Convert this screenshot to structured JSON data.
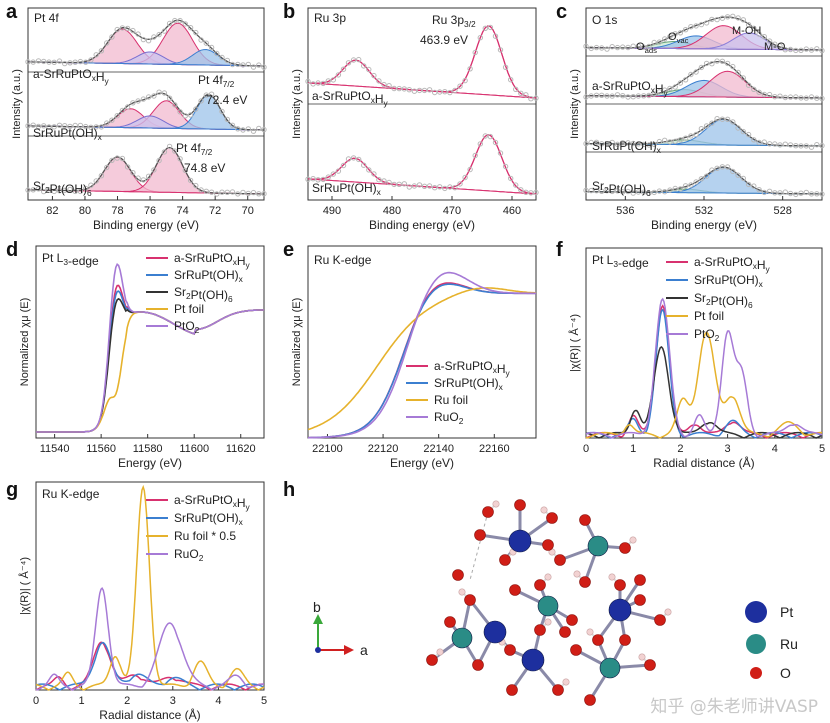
{
  "colors": {
    "pink_fill": "#f2b9cf",
    "pink_line": "#d8316f",
    "blue_fill": "#9cc3ea",
    "blue_line": "#3b7fd0",
    "violet_fill": "#c9c3ef",
    "green_fill": "#c9ead2",
    "dots": "#b8b8b8",
    "gray_line": "#555555",
    "orange": "#e6b22c",
    "purple": "#a67ad6",
    "black": "#333333",
    "ru_atom": "#2a8c86",
    "pt_atom": "#1d2f9e",
    "o_atom": "#d01e16",
    "h_atom": "#f2d2d2"
  },
  "watermark": "知乎 @朱老师讲VASP",
  "panel_labels": [
    "a",
    "b",
    "c",
    "d",
    "e",
    "f",
    "g",
    "h"
  ],
  "chart_data": [
    {
      "id": "a",
      "type": "line",
      "title": "Pt 4f",
      "xlabel": "Binding energy (eV)",
      "ylabel": "Intensity (a.u.)",
      "xlim": [
        83.5,
        69
      ],
      "xticks": [
        82,
        80,
        78,
        76,
        74,
        72,
        70
      ],
      "xticklabels": [
        "82",
        "80",
        "78",
        "76",
        "74",
        "72",
        "70"
      ],
      "spectra": [
        {
          "label": "a-SrRuPtO",
          "sub1": "x",
          "mid": "H",
          "sub2": "y",
          "peaks": [
            [
              77.7,
              0.9,
              1.0
            ],
            [
              74.3,
              0.9,
              1.2
            ],
            [
              76.0,
              0.8,
              0.35
            ],
            [
              72.6,
              0.8,
              0.45
            ]
          ]
        },
        {
          "label": "SrRuPt(OH)",
          "sub1": "x",
          "peaks": [
            [
              77.2,
              0.8,
              0.55
            ],
            [
              75.0,
              0.8,
              0.8
            ],
            [
              76.0,
              0.8,
              0.35
            ],
            [
              72.4,
              0.7,
              1.0
            ]
          ]
        },
        {
          "label": "Sr",
          "sub1": "2",
          "mid": "Pt(OH)",
          "sub2": "6",
          "peaks": [
            [
              78.0,
              0.8,
              1.0
            ],
            [
              74.8,
              0.8,
              1.3
            ]
          ]
        }
      ],
      "annotations": [
        {
          "main": "Pt 4f",
          "sub": "7/2",
          "value": "72.4 eV"
        },
        {
          "main": "Pt 4f",
          "sub": "7/2",
          "value": "74.8 eV"
        }
      ]
    },
    {
      "id": "b",
      "type": "line",
      "title": "Ru 3p",
      "xlabel": "Binding energy (eV)",
      "ylabel": "Intensity (a.u.)",
      "xlim": [
        494,
        456
      ],
      "xticks": [
        490,
        480,
        470,
        460
      ],
      "xticklabels": [
        "490",
        "480",
        "470",
        "460"
      ],
      "spectra": [
        {
          "label": "a-SrRuPtO",
          "sub1": "x",
          "mid": "H",
          "sub2": "y",
          "peaks": [
            [
              486.0,
              2.2,
              0.6
            ],
            [
              463.9,
              2.2,
              1.6
            ]
          ]
        },
        {
          "label": "SrRuPt(OH)",
          "sub1": "x",
          "peaks": [
            [
              486.2,
              2.2,
              0.55
            ],
            [
              463.9,
              2.2,
              1.3
            ]
          ]
        }
      ],
      "annotations": [
        {
          "main": "Ru 3p",
          "sub": "3/2",
          "value": "463.9 eV"
        }
      ]
    },
    {
      "id": "c",
      "type": "line",
      "title": "O 1s",
      "xlabel": "Binding energy (eV)",
      "ylabel": "Intensity (a.u.)",
      "xlim": [
        538,
        526
      ],
      "xticks": [
        536,
        532,
        528
      ],
      "xticklabels": [
        "536",
        "532",
        "528"
      ],
      "spectra": [
        {
          "label": "",
          "peaks": [
            [
              533.5,
              0.9,
              0.3
            ],
            [
              532.4,
              0.9,
              0.55
            ],
            [
              531.0,
              0.9,
              1.0
            ],
            [
              529.7,
              0.8,
              0.7
            ]
          ]
        },
        {
          "label": "a-SrRuPtO",
          "sub1": "x",
          "mid": "H",
          "sub2": "y",
          "peaks": [
            [
              533.0,
              0.9,
              0.3
            ],
            [
              532.0,
              0.9,
              0.7
            ],
            [
              530.8,
              0.9,
              1.1
            ]
          ]
        },
        {
          "label": "SrRuPt(OH)",
          "sub1": "x",
          "peaks": [
            [
              533.0,
              0.9,
              0.2
            ],
            [
              531.0,
              0.9,
              1.1
            ]
          ]
        },
        {
          "label": "Sr",
          "sub1": "2",
          "mid": "Pt(OH)",
          "sub2": "6",
          "peaks": [
            [
              532.9,
              0.8,
              0.15
            ],
            [
              531.0,
              0.9,
              1.1
            ]
          ]
        }
      ],
      "annotations": [
        {
          "main": "O",
          "sub": "ads"
        },
        {
          "main": "O",
          "sub": "vac"
        },
        {
          "main": "M-OH"
        },
        {
          "main": "M-O"
        }
      ]
    },
    {
      "id": "d",
      "type": "line",
      "title": "Pt L",
      "title_sub": "3",
      "title_tail": "-edge",
      "xlabel": "Energy (eV)",
      "ylabel": "Normalized χμ (E)",
      "xlim": [
        11532,
        11630
      ],
      "ylim": [
        0,
        1.6
      ],
      "xticks": [
        11540,
        11560,
        11580,
        11600,
        11620
      ],
      "xticklabels": [
        "11540",
        "11560",
        "11580",
        "11600",
        "11620"
      ],
      "series": [
        {
          "name": "a-SrRuPtO",
          "sub1": "x",
          "mid": "H",
          "sub2": "y",
          "color": "#d8316f",
          "e0": 11563,
          "wl": 1.3
        },
        {
          "name": "SrRuPt(OH)",
          "sub1": "x",
          "color": "#3b7fd0",
          "e0": 11563,
          "wl": 1.25
        },
        {
          "name": "Sr",
          "sub1": "2",
          "mid": "Pt(OH)",
          "sub2": "6",
          "color": "#333333",
          "e0": 11563,
          "wl": 1.18
        },
        {
          "name": "Pt foil",
          "color": "#e6b22c",
          "e0": 11563,
          "wl": 0.42
        },
        {
          "name": "PtO",
          "sub1": "2",
          "color": "#a67ad6",
          "e0": 11563,
          "wl": 1.48
        }
      ]
    },
    {
      "id": "e",
      "type": "line",
      "title": "Ru K-edge",
      "xlabel": "Energy (eV)",
      "ylabel": "Normalized χμ (E)",
      "xlim": [
        22093,
        22175
      ],
      "ylim": [
        0,
        1.3
      ],
      "xticks": [
        22100,
        22120,
        22140,
        22160
      ],
      "xticklabels": [
        "22100",
        "22120",
        "22140",
        "22160"
      ],
      "series": [
        {
          "name": "a-SrRuPtO",
          "sub1": "x",
          "mid": "H",
          "sub2": "y",
          "color": "#d8316f",
          "e0": 22127,
          "peak_e": 22138,
          "peak": 1.12
        },
        {
          "name": "SrRuPt(OH)",
          "sub1": "x",
          "color": "#3b7fd0",
          "e0": 22127,
          "peak_e": 22138,
          "peak": 1.11
        },
        {
          "name": "Ru foil",
          "color": "#e6b22c",
          "e0": 22118,
          "peak_e": 22155,
          "peak": 1.03
        },
        {
          "name": "RuO",
          "sub1": "2",
          "color": "#a67ad6",
          "e0": 22128,
          "peak_e": 22140,
          "peak": 1.19
        }
      ]
    },
    {
      "id": "f",
      "type": "line",
      "title": "Pt L",
      "title_sub": "3",
      "title_tail": "-edge",
      "xlabel": "Radial distance (Å)",
      "ylabel": "|χ(R)| ( Å⁻⁴)",
      "xlim": [
        0,
        5
      ],
      "ylim": [
        0,
        1.05
      ],
      "xticks": [
        0,
        1,
        2,
        3,
        4,
        5
      ],
      "xticklabels": [
        "0",
        "1",
        "2",
        "3",
        "4",
        "5"
      ],
      "series": [
        {
          "name": "a-SrRuPtO",
          "sub1": "x",
          "mid": "H",
          "sub2": "y",
          "color": "#d8316f",
          "peaks": [
            [
              1.62,
              0.14,
              0.72
            ],
            [
              1.0,
              0.1,
              0.1
            ],
            [
              2.3,
              0.12,
              0.07
            ],
            [
              3.1,
              0.15,
              0.08
            ]
          ]
        },
        {
          "name": "SrRuPt(OH)",
          "sub1": "x",
          "color": "#3b7fd0",
          "peaks": [
            [
              1.62,
              0.14,
              0.68
            ],
            [
              1.0,
              0.1,
              0.08
            ],
            [
              3.1,
              0.15,
              0.07
            ]
          ]
        },
        {
          "name": "Sr",
          "sub1": "2",
          "mid": "Pt(OH)",
          "sub2": "6",
          "color": "#333333",
          "peaks": [
            [
              1.6,
              0.16,
              0.48
            ],
            [
              1.05,
              0.1,
              0.15
            ],
            [
              2.6,
              0.15,
              0.08
            ]
          ]
        },
        {
          "name": "Pt foil",
          "color": "#e6b22c",
          "peaks": [
            [
              2.55,
              0.18,
              0.56
            ],
            [
              2.05,
              0.12,
              0.18
            ],
            [
              3.1,
              0.15,
              0.22
            ],
            [
              0.9,
              0.1,
              0.06
            ],
            [
              4.3,
              0.2,
              0.06
            ]
          ]
        },
        {
          "name": "PtO",
          "sub1": "2",
          "color": "#a67ad6",
          "peaks": [
            [
              1.62,
              0.15,
              0.74
            ],
            [
              3.0,
              0.13,
              0.56
            ],
            [
              3.3,
              0.12,
              0.32
            ],
            [
              2.4,
              0.1,
              0.1
            ],
            [
              4.4,
              0.15,
              0.07
            ]
          ]
        }
      ]
    },
    {
      "id": "g",
      "type": "line",
      "title": "Ru K-edge",
      "xlabel": "Radial distance (Å)",
      "ylabel": "|χ(R)| ( Å⁻⁴)",
      "xlim": [
        0,
        5
      ],
      "ylim": [
        0,
        1.05
      ],
      "xticks": [
        0,
        1,
        2,
        3,
        4,
        5
      ],
      "xticklabels": [
        "0",
        "1",
        "2",
        "3",
        "4",
        "5"
      ],
      "series": [
        {
          "name": "a-SrRuPtO",
          "sub1": "x",
          "mid": "H",
          "sub2": "y",
          "color": "#d8316f",
          "peaks": [
            [
              1.45,
              0.18,
              0.23
            ],
            [
              2.2,
              0.2,
              0.06
            ],
            [
              3.0,
              0.2,
              0.05
            ],
            [
              0.5,
              0.1,
              0.04
            ]
          ]
        },
        {
          "name": "SrRuPt(OH)",
          "sub1": "x",
          "color": "#3b7fd0",
          "peaks": [
            [
              1.45,
              0.18,
              0.22
            ],
            [
              2.2,
              0.2,
              0.06
            ],
            [
              3.0,
              0.2,
              0.04
            ]
          ]
        },
        {
          "name": "Ru foil * 0.5",
          "color": "#e6b22c",
          "peaks": [
            [
              2.35,
              0.14,
              1.0
            ],
            [
              1.75,
              0.12,
              0.16
            ],
            [
              3.6,
              0.15,
              0.12
            ],
            [
              4.4,
              0.15,
              0.08
            ],
            [
              0.7,
              0.1,
              0.06
            ]
          ]
        },
        {
          "name": "RuO",
          "sub1": "2",
          "color": "#a67ad6",
          "peaks": [
            [
              1.45,
              0.14,
              0.5
            ],
            [
              2.95,
              0.25,
              0.32
            ],
            [
              0.4,
              0.1,
              0.05
            ],
            [
              4.4,
              0.15,
              0.05
            ]
          ]
        }
      ]
    }
  ],
  "panel_h": {
    "axes": {
      "b": "b",
      "a": "a"
    },
    "legend": [
      {
        "name": "Pt",
        "color": "#1d2f9e"
      },
      {
        "name": "Ru",
        "color": "#2a8c86"
      },
      {
        "name": "O",
        "color": "#d01e16"
      }
    ]
  }
}
